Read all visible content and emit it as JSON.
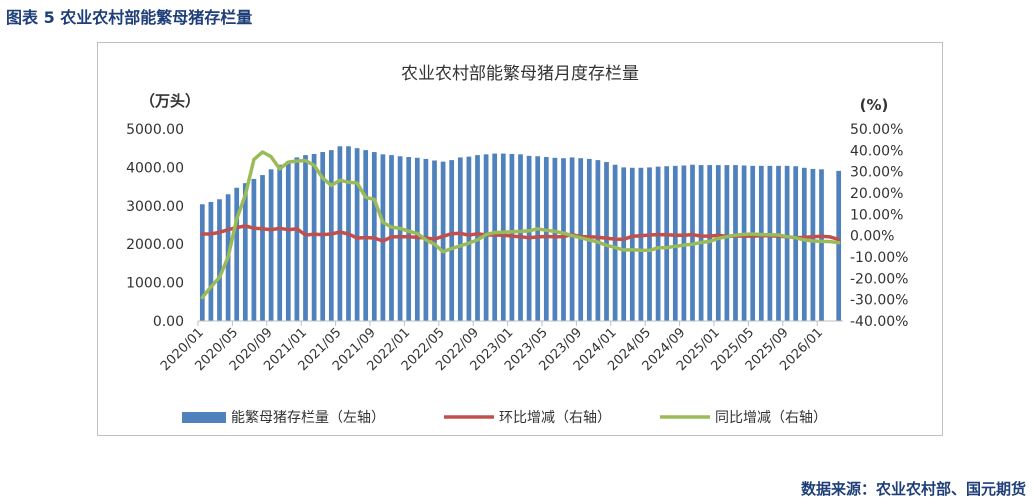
{
  "figure_title": "图表 5 农业农村部能繁母猪存栏量",
  "source": "数据来源：农业农村部、国元期货",
  "chart_data": {
    "type": "bar",
    "title": "农业农村部能繁母猪月度存栏量",
    "left_unit": "（万头）",
    "right_unit": "(%)",
    "left_axis": {
      "min": 0,
      "max": 5000,
      "ticks": [
        "0.00",
        "1000.00",
        "2000.00",
        "3000.00",
        "4000.00",
        "5000.00"
      ]
    },
    "right_axis": {
      "min": -40,
      "max": 50,
      "ticks": [
        "-40.00%",
        "-30.00%",
        "-20.00%",
        "-10.00%",
        "0.00%",
        "10.00%",
        "20.00%",
        "30.00%",
        "40.00%",
        "50.00%"
      ]
    },
    "x_tick_labels": [
      "2020/01",
      "2020/05",
      "2020/09",
      "2021/01",
      "2021/05",
      "2021/09",
      "2022/01",
      "2022/05",
      "2022/09",
      "2023/01",
      "2023/05",
      "2023/09",
      "2024/01",
      "2024/05",
      "2024/09",
      "2025/01",
      "2025/05",
      "2025/09",
      "2026/01"
    ],
    "months": [
      "2020/01",
      "2020/02",
      "2020/03",
      "2020/04",
      "2020/05",
      "2020/06",
      "2020/07",
      "2020/08",
      "2020/09",
      "2020/10",
      "2020/11",
      "2020/12",
      "2021/01",
      "2021/02",
      "2021/03",
      "2021/04",
      "2021/05",
      "2021/06",
      "2021/07",
      "2021/08",
      "2021/09",
      "2021/10",
      "2021/11",
      "2021/12",
      "2022/01",
      "2022/02",
      "2022/03",
      "2022/04",
      "2022/05",
      "2022/06",
      "2022/07",
      "2022/08",
      "2022/09",
      "2022/10",
      "2022/11",
      "2022/12",
      "2023/01",
      "2023/02",
      "2023/03",
      "2023/04",
      "2023/05",
      "2023/06",
      "2023/07",
      "2023/08",
      "2023/09",
      "2023/10",
      "2023/11",
      "2023/12",
      "2024/01",
      "2024/02",
      "2024/03",
      "2024/04",
      "2024/05",
      "2024/06",
      "2024/07",
      "2024/08",
      "2024/09",
      "2024/10",
      "2024/11",
      "2024/12",
      "2025/01",
      "2025/02",
      "2025/03",
      "2025/04",
      "2025/05",
      "2025/06",
      "2025/07",
      "2025/08",
      "2025/09",
      "2025/10",
      "2025/11",
      "2025/12",
      "2026/01",
      "2026/02",
      "2026/03"
    ],
    "series": [
      {
        "name": "能繁母猪存栏量（左轴）",
        "kind": "bar",
        "axis": "left",
        "color": "#4f81bd",
        "values": [
          3040,
          3100,
          3170,
          3300,
          3470,
          3590,
          3700,
          3800,
          3950,
          4070,
          4160,
          4260,
          4320,
          4350,
          4400,
          4450,
          4550,
          4550,
          4500,
          4450,
          4400,
          4340,
          4320,
          4290,
          4270,
          4250,
          4220,
          4180,
          4150,
          4190,
          4260,
          4280,
          4320,
          4340,
          4360,
          4360,
          4350,
          4340,
          4300,
          4290,
          4270,
          4250,
          4240,
          4260,
          4240,
          4220,
          4190,
          4140,
          4070,
          4000,
          3990,
          3990,
          4000,
          4020,
          4030,
          4040,
          4050,
          4070,
          4060,
          4060,
          4060,
          4060,
          4060,
          4050,
          4040,
          4040,
          4040,
          4040,
          4040,
          4030,
          3990,
          3960,
          3950,
          0,
          3910
        ]
      },
      {
        "name": "环比增减（右轴）",
        "kind": "line",
        "axis": "right",
        "color": "#c0504d",
        "values": [
          0.8,
          0.8,
          1.6,
          2.8,
          3.8,
          4.6,
          3.5,
          3.2,
          2.8,
          3.4,
          2.8,
          3.2,
          0.3,
          0.7,
          0.5,
          0.8,
          1.7,
          0.8,
          -1.1,
          -0.9,
          -1.1,
          -2.5,
          -0.6,
          -0.5,
          -0.5,
          -0.8,
          -1.1,
          -1.6,
          -0.3,
          0.9,
          1.1,
          0.2,
          0.9,
          0.3,
          0.3,
          0.2,
          -0.2,
          -0.5,
          -1.0,
          -0.6,
          -0.4,
          -0.5,
          -0.5,
          0.5,
          -0.5,
          -0.5,
          -0.7,
          -1.2,
          -1.6,
          -1.7,
          -0.3,
          0.0,
          0.3,
          0.5,
          0.4,
          0.2,
          0.2,
          0.5,
          -0.2,
          -0.2,
          0.2,
          -0.3,
          -0.2,
          -0.2,
          -0.2,
          0.0,
          0.0,
          -0.3,
          -0.5,
          -1.0,
          -0.8,
          -0.5,
          -0.3,
          -0.6,
          -1.8
        ]
      },
      {
        "name": "同比增减（右轴）",
        "kind": "line",
        "axis": "right",
        "color": "#9bbb59",
        "values": [
          -29.0,
          -24.0,
          -19.5,
          -10.0,
          7.8,
          19.0,
          35.7,
          39.2,
          37.0,
          31.3,
          34.5,
          35.0,
          35.2,
          33.0,
          27.0,
          23.5,
          26.0,
          25.0,
          24.7,
          18.0,
          17.0,
          6.2,
          4.0,
          3.4,
          2.1,
          1.0,
          -2.0,
          -4.0,
          -7.5,
          -6.0,
          -4.8,
          -3.5,
          -2.0,
          0.5,
          1.5,
          1.6,
          1.8,
          2.0,
          2.3,
          3.2,
          2.5,
          2.0,
          1.2,
          0.0,
          -1.0,
          -2.0,
          -3.0,
          -4.5,
          -5.5,
          -6.7,
          -6.6,
          -6.8,
          -6.9,
          -5.7,
          -5.6,
          -5.0,
          -4.4,
          -4.0,
          -3.2,
          -2.7,
          -1.3,
          -0.5,
          0.2,
          0.6,
          0.8,
          0.5,
          0.4,
          0.3,
          -0.5,
          -1.0,
          -2.0,
          -2.5,
          -2.7,
          -2.8,
          -3.3
        ]
      }
    ]
  }
}
